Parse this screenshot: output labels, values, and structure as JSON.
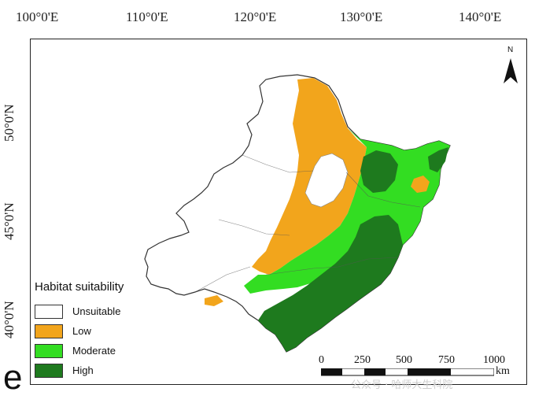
{
  "panel_label": "e",
  "longitude_labels": [
    "100°0'E",
    "110°0'E",
    "120°0'E",
    "130°0'E",
    "140°0'E"
  ],
  "latitude_labels": [
    "50°0'N",
    "45°0'N",
    "40°0'N"
  ],
  "north_arrow": {
    "label": "N",
    "icon": "north-arrow-icon"
  },
  "legend": {
    "title": "Habitat suitability",
    "items": [
      {
        "label": "Unsuitable",
        "color": "#ffffff"
      },
      {
        "label": "Low",
        "color": "#f2a51c"
      },
      {
        "label": "Moderate",
        "color": "#33dd22"
      },
      {
        "label": "High",
        "color": "#1e7a1e"
      }
    ]
  },
  "scale_bar": {
    "ticks": [
      "0",
      "250",
      "500",
      "750",
      "1000"
    ],
    "unit": "km"
  },
  "watermark": "公众号 · 哈师大生科院"
}
